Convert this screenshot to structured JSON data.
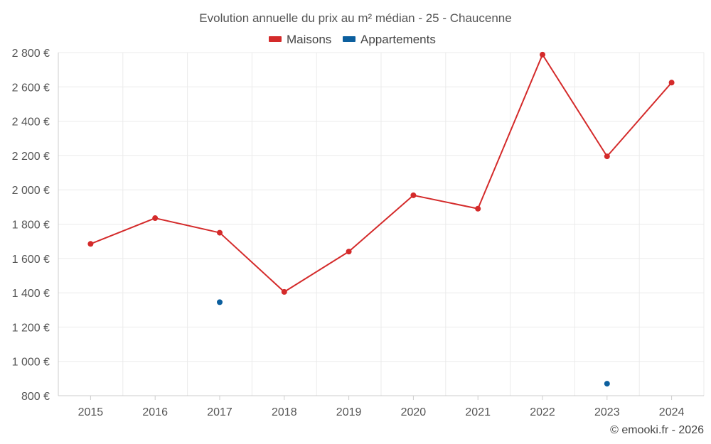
{
  "chart_data": {
    "type": "line",
    "title": "Evolution annuelle du prix au m² médian - 25 - Chaucenne",
    "categories": [
      "2015",
      "2016",
      "2017",
      "2018",
      "2019",
      "2020",
      "2021",
      "2022",
      "2023",
      "2024"
    ],
    "series": [
      {
        "name": "Maisons",
        "color": "#d42a2a",
        "values": [
          1685,
          1835,
          1750,
          1405,
          1640,
          1968,
          1890,
          2788,
          2195,
          2625
        ]
      },
      {
        "name": "Appartements",
        "color": "#0c5f9e",
        "values": [
          null,
          null,
          1345,
          null,
          null,
          null,
          null,
          null,
          870,
          null
        ]
      }
    ],
    "ylim": [
      800,
      2800
    ],
    "yticks": [
      800,
      1000,
      1200,
      1400,
      1600,
      1800,
      2000,
      2200,
      2400,
      2600,
      2800
    ],
    "ytick_labels": [
      "800 €",
      "1 000 €",
      "1 200 €",
      "1 400 €",
      "1 600 €",
      "1 800 €",
      "2 000 €",
      "2 200 €",
      "2 400 €",
      "2 600 €",
      "2 800 €"
    ],
    "xlabel": "",
    "ylabel": "",
    "grid": true,
    "legend_position": "top-center"
  },
  "credit": "© emooki.fr - 2026"
}
